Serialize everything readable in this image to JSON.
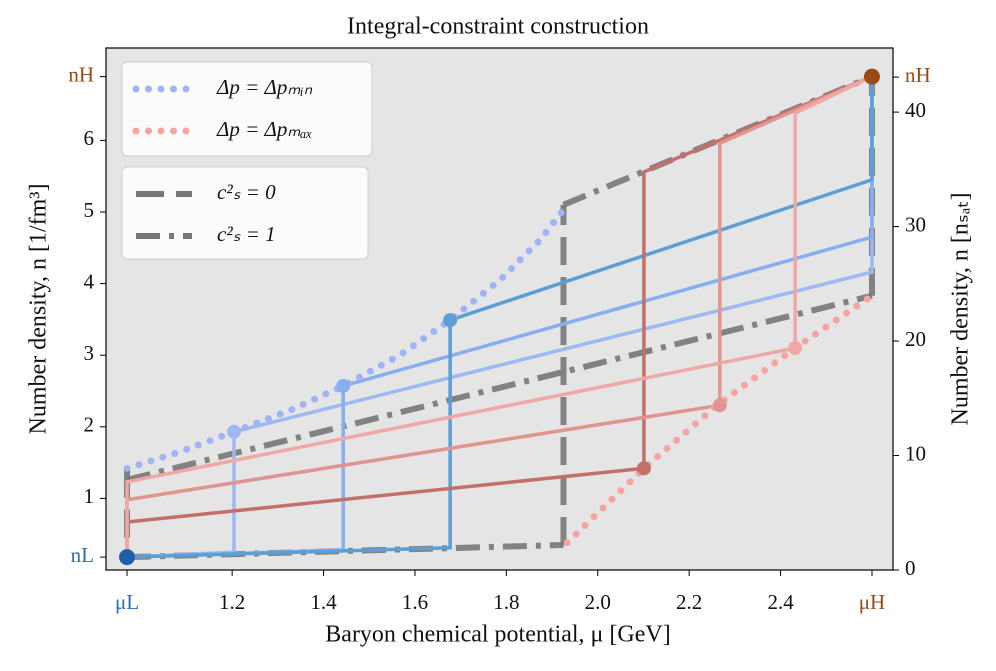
{
  "chart_data": {
    "type": "line",
    "title": "Integral-constraint construction",
    "xlabel": "Baryon chemical potential, μ [GeV]",
    "ylabel": "Number density, n [1/fm³]",
    "y2label": "Number density, n [nₛₐₜ]",
    "background": "#e5e5e5",
    "xlim": [
      0.924,
      2.646
    ],
    "ylim": [
      0,
      7.29
    ],
    "y2lim": [
      0,
      45.6
    ],
    "xticks": [
      {
        "value": 0.97,
        "label": "μL",
        "color": "#2f6db5"
      },
      1.2,
      1.4,
      1.6,
      1.8,
      {
        "value": 2.0,
        "label": "2.0"
      },
      2.2,
      2.4,
      {
        "value": 2.6,
        "label": "μH",
        "color": "#9a4a14"
      }
    ],
    "yticks": [
      {
        "value": 0.18,
        "label": "nL",
        "color": "#2f6db5"
      },
      1,
      2,
      3,
      4,
      5,
      6,
      {
        "value": 6.89,
        "label": "nH",
        "color": "#9a4a14"
      }
    ],
    "y2ticks": [
      0,
      10,
      20,
      30,
      40,
      {
        "value": 43.06,
        "label": "nH",
        "color": "#9a4a14"
      }
    ],
    "series": [
      {
        "name": "c²ₛ = 0",
        "color": "#777777",
        "style": "dashed",
        "legend": 2,
        "x": [
          0.97,
          0.97,
          null,
          1.925,
          1.925,
          null,
          2.6,
          2.6
        ],
        "values": [
          1.4,
          0.18,
          null,
          0.35,
          5.1,
          null,
          3.83,
          6.89
        ]
      },
      {
        "name": "c²ₛ = 1",
        "color": "#777777",
        "style": "dashdot",
        "legend": 2,
        "x": [
          0.97,
          1.925,
          null,
          1.925,
          2.6,
          null,
          0.97,
          2.6
        ],
        "values": [
          0.18,
          0.35,
          null,
          5.1,
          6.89,
          null,
          1.26,
          3.83
        ]
      },
      {
        "color": "#9db8f2",
        "style": "solid",
        "x": [
          0.97,
          1.204,
          1.204,
          2.6,
          2.6
        ],
        "values": [
          0.18,
          0.25,
          1.93,
          4.16,
          6.89
        ]
      },
      {
        "color": "#86aef0",
        "style": "solid",
        "x": [
          0.97,
          1.443,
          1.443,
          2.6,
          2.6
        ],
        "values": [
          0.18,
          0.28,
          2.57,
          4.65,
          6.89
        ]
      },
      {
        "color": "#5b9fd6",
        "style": "solid",
        "x": [
          0.97,
          1.677,
          1.677,
          2.6,
          2.6
        ],
        "values": [
          0.18,
          0.31,
          3.49,
          5.45,
          6.89
        ]
      },
      {
        "color": "#c4706a",
        "style": "solid",
        "x": [
          0.97,
          0.97,
          2.101,
          2.101,
          2.6
        ],
        "values": [
          0.18,
          0.67,
          1.42,
          5.56,
          6.89
        ]
      },
      {
        "color": "#e09590",
        "style": "solid",
        "x": [
          0.97,
          0.97,
          2.267,
          2.267,
          2.6
        ],
        "values": [
          0.18,
          0.98,
          2.3,
          5.96,
          6.89
        ]
      },
      {
        "color": "#f0a8a5",
        "style": "solid",
        "x": [
          0.97,
          0.97,
          2.432,
          2.432,
          2.6
        ],
        "values": [
          0.18,
          1.23,
          3.1,
          6.38,
          6.89
        ]
      },
      {
        "name": "Δp = Δpₘᵢₙ",
        "color": "#a0b4f5",
        "style": "dotted",
        "legend": 1,
        "x": [
          0.97,
          1.086,
          1.204,
          1.327,
          1.443,
          1.567,
          1.677,
          1.786,
          1.874,
          1.925
        ],
        "values": [
          1.42,
          1.65,
          1.93,
          2.23,
          2.57,
          3.0,
          3.49,
          4.05,
          4.61,
          5.03
        ]
      },
      {
        "name": "Δp = Δpₘₐₓ",
        "color": "#f5a5a0",
        "style": "dotted",
        "legend": 1,
        "x": [
          1.933,
          2.101,
          2.261,
          2.432,
          2.6
        ],
        "values": [
          0.38,
          1.42,
          2.3,
          3.1,
          3.83
        ]
      }
    ],
    "points": [
      {
        "x": 1.204,
        "y": 1.93,
        "color": "#9db8f2"
      },
      {
        "x": 1.443,
        "y": 2.57,
        "color": "#86aef0"
      },
      {
        "x": 1.677,
        "y": 3.49,
        "color": "#5b9fd6"
      },
      {
        "x": 2.101,
        "y": 1.42,
        "color": "#c4706a"
      },
      {
        "x": 2.267,
        "y": 2.3,
        "color": "#e09590"
      },
      {
        "x": 2.432,
        "y": 3.1,
        "color": "#f0a8a5"
      },
      {
        "x": 0.97,
        "y": 0.18,
        "color": "#1f5fa8"
      },
      {
        "x": 2.6,
        "y": 6.89,
        "color": "#9a4a14"
      }
    ]
  }
}
